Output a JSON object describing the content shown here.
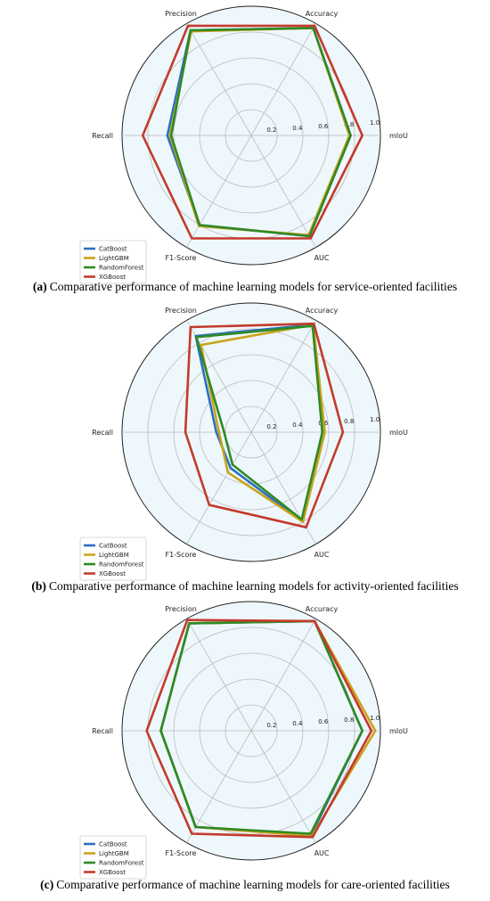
{
  "chart_data": [
    {
      "type": "radar",
      "caption_label": "(a)",
      "caption": "Comparative performance of machine learning models for service-oriented facilities",
      "categories": [
        "mIoU",
        "Accuracy",
        "Precision",
        "Recall",
        "F1-Score",
        "AUC"
      ],
      "rlim": [
        0,
        1
      ],
      "rticks": [
        0.2,
        0.4,
        0.6,
        0.8,
        {
          "value": 1,
          "label": "1.0"
        }
      ],
      "grid": true,
      "legend": "lower left",
      "series": [
        {
          "name": "CatBoost",
          "color": "#2b6fc4",
          "values": [
            0.77,
            0.96,
            0.94,
            0.65,
            0.8,
            0.9
          ]
        },
        {
          "name": "LightGBM",
          "color": "#c9a31c",
          "values": [
            0.76,
            0.96,
            0.93,
            0.63,
            0.81,
            0.89
          ]
        },
        {
          "name": "RandomForest",
          "color": "#2f8a25",
          "values": [
            0.77,
            0.96,
            0.94,
            0.62,
            0.8,
            0.9
          ]
        },
        {
          "name": "XGBoost",
          "color": "#c43a2c",
          "values": [
            0.86,
            0.98,
            0.98,
            0.84,
            0.92,
            0.92
          ]
        }
      ]
    },
    {
      "type": "radar",
      "caption_label": "(b)",
      "caption": "Comparative performance of machine learning models for activity-oriented facilities",
      "categories": [
        "mIoU",
        "Accuracy",
        "Precision",
        "Recall",
        "F1-Score",
        "AUC"
      ],
      "rlim": [
        0,
        1
      ],
      "rticks": [
        0.2,
        0.4,
        0.6,
        0.8,
        {
          "value": 1,
          "label": "1.0"
        }
      ],
      "grid": true,
      "legend": "lower left",
      "series": [
        {
          "name": "CatBoost",
          "color": "#2b6fc4",
          "values": [
            0.55,
            0.96,
            0.86,
            0.27,
            0.32,
            0.8
          ]
        },
        {
          "name": "LightGBM",
          "color": "#c9a31c",
          "values": [
            0.57,
            0.96,
            0.78,
            0.25,
            0.36,
            0.8
          ]
        },
        {
          "name": "RandomForest",
          "color": "#2f8a25",
          "values": [
            0.55,
            0.95,
            0.85,
            0.21,
            0.29,
            0.78
          ]
        },
        {
          "name": "XGBoost",
          "color": "#c43a2c",
          "values": [
            0.71,
            0.97,
            0.94,
            0.51,
            0.65,
            0.85
          ]
        }
      ]
    },
    {
      "type": "radar",
      "caption_label": "(c)",
      "caption": "Comparative performance of machine learning models for care-oriented facilities",
      "categories": [
        "mIoU",
        "Accuracy",
        "Precision",
        "Recall",
        "F1-Score",
        "AUC"
      ],
      "rlim": [
        0,
        1
      ],
      "rticks": [
        0.2,
        0.4,
        0.6,
        0.8,
        {
          "value": 1,
          "label": "1.0"
        }
      ],
      "grid": true,
      "legend": "lower left",
      "series": [
        {
          "name": "CatBoost",
          "color": "#2b6fc4",
          "values": [
            0.86,
            0.98,
            0.96,
            0.7,
            0.86,
            0.93
          ]
        },
        {
          "name": "LightGBM",
          "color": "#c9a31c",
          "values": [
            0.96,
            0.98,
            0.96,
            0.7,
            0.86,
            0.94
          ]
        },
        {
          "name": "RandomForest",
          "color": "#2f8a25",
          "values": [
            0.86,
            0.98,
            0.96,
            0.7,
            0.86,
            0.92
          ]
        },
        {
          "name": "XGBoost",
          "color": "#c43a2c",
          "values": [
            0.93,
            0.98,
            0.99,
            0.81,
            0.92,
            0.95
          ]
        }
      ]
    }
  ]
}
